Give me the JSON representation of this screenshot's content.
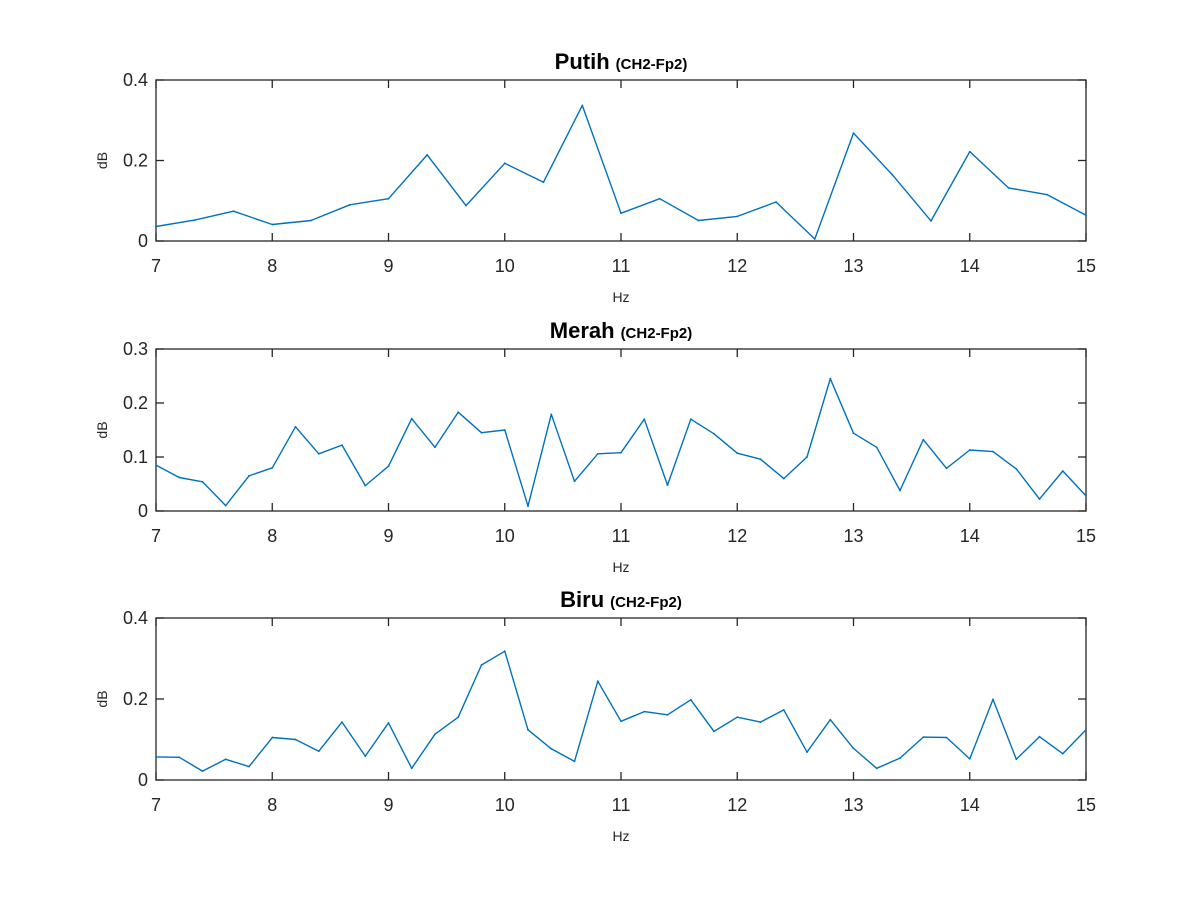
{
  "figure": {
    "background": "#ffffff",
    "line_color": "#0072bd"
  },
  "chart_data": [
    {
      "type": "line",
      "title": "Putih",
      "subtitle": "(CH2-Fp2)",
      "xlabel": "Hz",
      "ylabel": "dB",
      "xlim": [
        7,
        15
      ],
      "ylim": [
        0,
        0.4
      ],
      "xticks": [
        "7",
        "8",
        "9",
        "10",
        "11",
        "12",
        "13",
        "14",
        "15"
      ],
      "yticks": [
        "0",
        "0.2",
        "0.4"
      ],
      "grid": false,
      "series": [
        {
          "x": [
            7,
            7.333,
            7.667,
            8,
            8.333,
            8.667,
            9,
            9.333,
            9.667,
            10,
            10.333,
            10.667,
            11,
            11.333,
            11.667,
            12,
            12.333,
            12.667,
            13,
            13.333,
            13.667,
            14,
            14.333,
            14.667,
            15
          ],
          "y": [
            0.036,
            0.052,
            0.074,
            0.041,
            0.051,
            0.09,
            0.105,
            0.214,
            0.088,
            0.193,
            0.146,
            0.337,
            0.069,
            0.105,
            0.051,
            0.061,
            0.097,
            0.005,
            0.268,
            0.165,
            0.05,
            0.222,
            0.132,
            0.115,
            0.064
          ]
        }
      ]
    },
    {
      "type": "line",
      "title": "Merah",
      "subtitle": "(CH2-Fp2)",
      "xlabel": "Hz",
      "ylabel": "dB",
      "xlim": [
        7,
        15
      ],
      "ylim": [
        0,
        0.3
      ],
      "xticks": [
        "7",
        "8",
        "9",
        "10",
        "11",
        "12",
        "13",
        "14",
        "15"
      ],
      "yticks": [
        "0",
        "0.1",
        "0.2",
        "0.3"
      ],
      "grid": false,
      "series": [
        {
          "x": [
            7,
            7.2,
            7.4,
            7.6,
            7.8,
            8,
            8.2,
            8.4,
            8.6,
            8.8,
            9,
            9.2,
            9.4,
            9.6,
            9.8,
            10,
            10.2,
            10.4,
            10.6,
            10.8,
            11,
            11.2,
            11.4,
            11.6,
            11.8,
            12,
            12.2,
            12.4,
            12.6,
            12.8,
            13,
            13.2,
            13.4,
            13.6,
            13.8,
            14,
            14.2,
            14.4,
            14.6,
            14.8,
            15
          ],
          "y": [
            0.085,
            0.062,
            0.054,
            0.01,
            0.065,
            0.08,
            0.156,
            0.106,
            0.122,
            0.047,
            0.083,
            0.171,
            0.118,
            0.183,
            0.145,
            0.15,
            0.009,
            0.179,
            0.055,
            0.106,
            0.108,
            0.17,
            0.048,
            0.17,
            0.143,
            0.107,
            0.096,
            0.06,
            0.1,
            0.245,
            0.144,
            0.118,
            0.038,
            0.132,
            0.079,
            0.113,
            0.11,
            0.078,
            0.022,
            0.074,
            0.028
          ]
        }
      ]
    },
    {
      "type": "line",
      "title": "Biru",
      "subtitle": "(CH2-Fp2)",
      "xlabel": "Hz",
      "ylabel": "dB",
      "xlim": [
        7,
        15
      ],
      "ylim": [
        0,
        0.4
      ],
      "xticks": [
        "7",
        "8",
        "9",
        "10",
        "11",
        "12",
        "13",
        "14",
        "15"
      ],
      "yticks": [
        "0",
        "0.2",
        "0.4"
      ],
      "grid": false,
      "series": [
        {
          "x": [
            7,
            7.2,
            7.4,
            7.6,
            7.8,
            8,
            8.2,
            8.4,
            8.6,
            8.8,
            9,
            9.2,
            9.4,
            9.6,
            9.8,
            10,
            10.2,
            10.4,
            10.6,
            10.8,
            11,
            11.2,
            11.4,
            11.6,
            11.8,
            12,
            12.2,
            12.4,
            12.6,
            12.8,
            13,
            13.2,
            13.4,
            13.6,
            13.8,
            14,
            14.2,
            14.4,
            14.6,
            14.8,
            15
          ],
          "y": [
            0.057,
            0.056,
            0.022,
            0.051,
            0.033,
            0.105,
            0.1,
            0.071,
            0.143,
            0.059,
            0.141,
            0.029,
            0.113,
            0.155,
            0.284,
            0.318,
            0.124,
            0.077,
            0.046,
            0.244,
            0.145,
            0.169,
            0.161,
            0.198,
            0.12,
            0.155,
            0.143,
            0.173,
            0.069,
            0.149,
            0.078,
            0.029,
            0.054,
            0.106,
            0.105,
            0.052,
            0.199,
            0.051,
            0.107,
            0.065,
            0.124
          ]
        }
      ]
    }
  ]
}
